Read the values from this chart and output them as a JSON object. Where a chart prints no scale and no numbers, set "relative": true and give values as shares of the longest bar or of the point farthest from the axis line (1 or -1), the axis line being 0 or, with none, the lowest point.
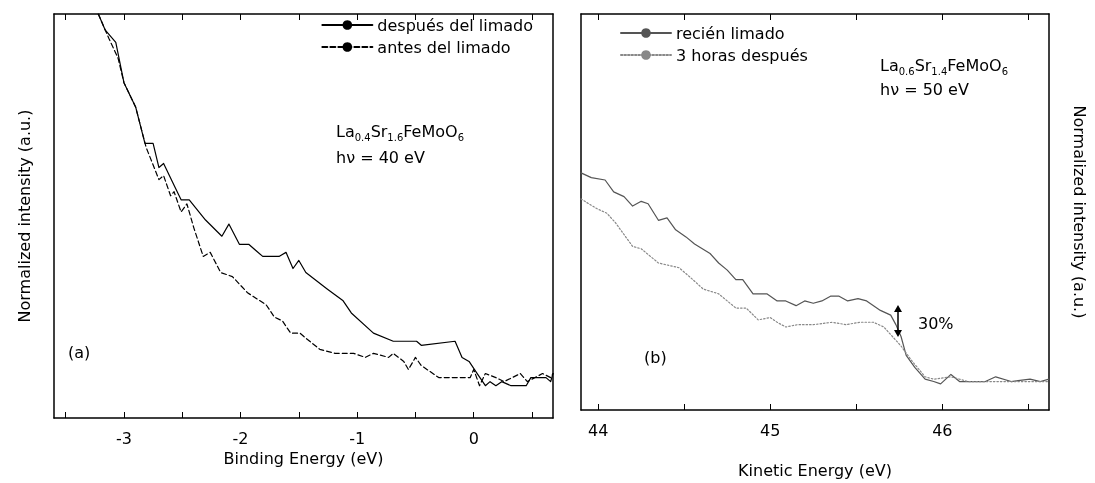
{
  "chart_data": [
    {
      "type": "line",
      "xlabel": "Binding Energy (eV)",
      "ylabel": "Normalized intensity (a.u.)",
      "relative": true,
      "legend": "top right",
      "marker": "none",
      "grid": false,
      "tick_labels": "x",
      "xlim": [
        -3.6,
        0.68
      ],
      "xticks": [
        {
          "value": -3.5,
          "label": null
        },
        -3,
        {
          "value": -2.5,
          "label": null
        },
        -2,
        {
          "value": -1.5,
          "label": null
        },
        -1,
        {
          "value": -0.5,
          "label": null
        },
        0,
        {
          "value": 0.5,
          "label": null
        }
      ],
      "annotations": [
        "La$_{0.4}$Sr$_{1.6}$FeMoO$_{6}$",
        "hν = 40 eV",
        "(a)"
      ],
      "series": [
        {
          "name": "después del limado",
          "color": "#000000",
          "line_style": "solid",
          "x": [
            -3.22,
            -3.16,
            -3.07,
            -3.0,
            -2.9,
            -2.82,
            -2.75,
            -2.7,
            -2.66,
            -2.56,
            -2.51,
            -2.44,
            -2.3,
            -2.16,
            -2.1,
            -2.01,
            -1.93,
            -1.81,
            -1.67,
            -1.61,
            -1.55,
            -1.5,
            -1.44,
            -1.26,
            -1.12,
            -1.05,
            -0.86,
            -0.69,
            -0.49,
            -0.45,
            -0.16,
            -0.1,
            -0.04,
            0.03,
            0.1,
            0.14,
            0.19,
            0.24,
            0.32,
            0.45,
            0.49,
            0.57,
            0.62,
            0.66,
            0.68
          ],
          "values": [
            1.0,
            0.96,
            0.93,
            0.83,
            0.77,
            0.68,
            0.68,
            0.62,
            0.63,
            0.57,
            0.54,
            0.54,
            0.49,
            0.45,
            0.48,
            0.43,
            0.43,
            0.4,
            0.4,
            0.41,
            0.37,
            0.39,
            0.36,
            0.32,
            0.29,
            0.26,
            0.21,
            0.19,
            0.19,
            0.18,
            0.19,
            0.15,
            0.14,
            0.11,
            0.08,
            0.09,
            0.08,
            0.09,
            0.08,
            0.08,
            0.1,
            0.1,
            0.1,
            0.09,
            0.11
          ]
        },
        {
          "name": "antes del limado",
          "color": "#000000",
          "line_style": "dashed",
          "x": [
            -3.22,
            -3.13,
            -3.05,
            -3.0,
            -2.9,
            -2.81,
            -2.7,
            -2.66,
            -2.6,
            -2.57,
            -2.51,
            -2.46,
            -2.4,
            -2.32,
            -2.26,
            -2.17,
            -2.07,
            -1.94,
            -1.78,
            -1.71,
            -1.64,
            -1.57,
            -1.49,
            -1.45,
            -1.32,
            -1.19,
            -1.03,
            -0.93,
            -0.86,
            -0.73,
            -0.69,
            -0.6,
            -0.56,
            -0.5,
            -0.45,
            -0.3,
            -0.13,
            -0.03,
            0.0,
            0.05,
            0.1,
            0.19,
            0.26,
            0.4,
            0.46,
            0.59,
            0.66,
            0.68
          ],
          "values": [
            1.0,
            0.94,
            0.89,
            0.83,
            0.77,
            0.67,
            0.59,
            0.6,
            0.55,
            0.56,
            0.51,
            0.53,
            0.47,
            0.4,
            0.41,
            0.36,
            0.35,
            0.31,
            0.28,
            0.25,
            0.24,
            0.21,
            0.21,
            0.2,
            0.17,
            0.16,
            0.16,
            0.15,
            0.16,
            0.15,
            0.16,
            0.14,
            0.12,
            0.15,
            0.13,
            0.1,
            0.1,
            0.1,
            0.12,
            0.08,
            0.11,
            0.1,
            0.09,
            0.11,
            0.09,
            0.11,
            0.1,
            0.11
          ]
        }
      ]
    },
    {
      "type": "line",
      "xlabel": "Kinetic Energy (eV)",
      "y2label": "Normalized intensity (a.u.)",
      "relative": true,
      "legend": "top left",
      "marker": "none",
      "grid": false,
      "tick_labels": "x",
      "xlim": [
        43.9,
        46.62
      ],
      "xticks": [
        44,
        {
          "value": 44.5,
          "label": null
        },
        45,
        {
          "value": 45.5,
          "label": null
        },
        46,
        {
          "value": 46.5,
          "label": null
        }
      ],
      "annotations": [
        "La$_{0.6}$Sr$_{1.4}$FeMoO$_{6}$",
        "hν = 50 eV",
        "(b)",
        "30%"
      ],
      "series": [
        {
          "name": "recién limado",
          "color": "#555555",
          "line_style": "solid",
          "x": [
            43.9,
            43.96,
            44.04,
            44.09,
            44.15,
            44.2,
            44.25,
            44.29,
            44.35,
            44.4,
            44.45,
            44.51,
            44.56,
            44.65,
            44.7,
            44.75,
            44.8,
            44.84,
            44.9,
            44.98,
            45.04,
            45.09,
            45.15,
            45.2,
            45.25,
            45.3,
            45.35,
            45.4,
            45.45,
            45.51,
            45.56,
            45.64,
            45.7,
            45.73,
            45.76,
            45.79,
            45.84,
            45.9,
            45.95,
            45.99,
            46.05,
            46.1,
            46.25,
            46.31,
            46.4,
            46.51,
            46.57,
            46.62
          ],
          "values": [
            1.0,
            0.98,
            0.97,
            0.92,
            0.9,
            0.86,
            0.88,
            0.87,
            0.8,
            0.81,
            0.76,
            0.73,
            0.7,
            0.66,
            0.62,
            0.59,
            0.55,
            0.55,
            0.49,
            0.49,
            0.46,
            0.46,
            0.44,
            0.46,
            0.45,
            0.46,
            0.48,
            0.48,
            0.46,
            0.47,
            0.46,
            0.42,
            0.4,
            0.36,
            0.31,
            0.23,
            0.18,
            0.13,
            0.12,
            0.11,
            0.15,
            0.12,
            0.12,
            0.14,
            0.12,
            0.13,
            0.12,
            0.13
          ]
        },
        {
          "name": "3 horas después",
          "color": "#888888",
          "line_style": "dotted",
          "x": [
            43.9,
            43.99,
            44.05,
            44.1,
            44.2,
            44.25,
            44.35,
            44.41,
            44.47,
            44.55,
            44.61,
            44.7,
            44.75,
            44.8,
            44.86,
            44.93,
            45.0,
            45.04,
            45.09,
            45.16,
            45.25,
            45.36,
            45.44,
            45.52,
            45.6,
            45.66,
            45.71,
            45.76,
            45.82,
            45.9,
            45.95,
            46.05,
            46.15,
            46.35,
            46.62
          ],
          "values": [
            0.89,
            0.85,
            0.83,
            0.79,
            0.69,
            0.68,
            0.62,
            0.61,
            0.6,
            0.55,
            0.51,
            0.49,
            0.46,
            0.43,
            0.43,
            0.38,
            0.39,
            0.37,
            0.35,
            0.36,
            0.36,
            0.37,
            0.36,
            0.37,
            0.37,
            0.35,
            0.31,
            0.27,
            0.21,
            0.14,
            0.13,
            0.14,
            0.12,
            0.12,
            0.12
          ]
        }
      ]
    }
  ]
}
